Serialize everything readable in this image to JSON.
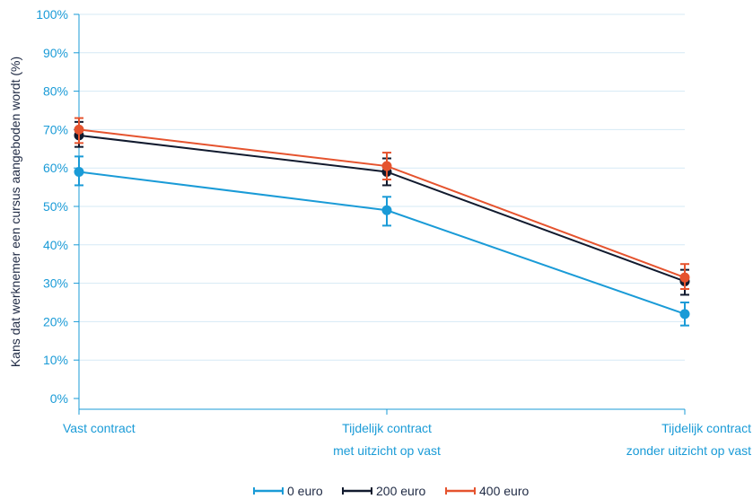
{
  "chart_data": {
    "type": "line",
    "ylabel": "Kans dat werknemer een cursus aangeboden wordt (%)",
    "xlabel": "",
    "ylim": [
      0,
      100
    ],
    "yticks": [
      "0%",
      "10%",
      "20%",
      "30%",
      "40%",
      "50%",
      "60%",
      "70%",
      "80%",
      "90%",
      "100%"
    ],
    "categories": [
      [
        "Vast contract"
      ],
      [
        "Tijdelijk contract",
        "met uitzicht op vast"
      ],
      [
        "Tijdelijk contract",
        "zonder uitzicht op vast"
      ]
    ],
    "grid": true,
    "legend_position": "bottom",
    "series": [
      {
        "name": "0 euro",
        "color": "#1a9bd7",
        "values": [
          59,
          49,
          22
        ],
        "err_low": [
          55.5,
          45,
          19
        ],
        "err_high": [
          63,
          52.5,
          25
        ]
      },
      {
        "name": "200 euro",
        "color": "#111a2e",
        "values": [
          68.5,
          59,
          30.5
        ],
        "err_low": [
          65.5,
          55.5,
          27
        ],
        "err_high": [
          72,
          62.5,
          33.5
        ]
      },
      {
        "name": "400 euro",
        "color": "#e5532e",
        "values": [
          70,
          60.5,
          31.5
        ],
        "err_low": [
          66.5,
          57,
          28.5
        ],
        "err_high": [
          73,
          64,
          35
        ]
      }
    ]
  }
}
